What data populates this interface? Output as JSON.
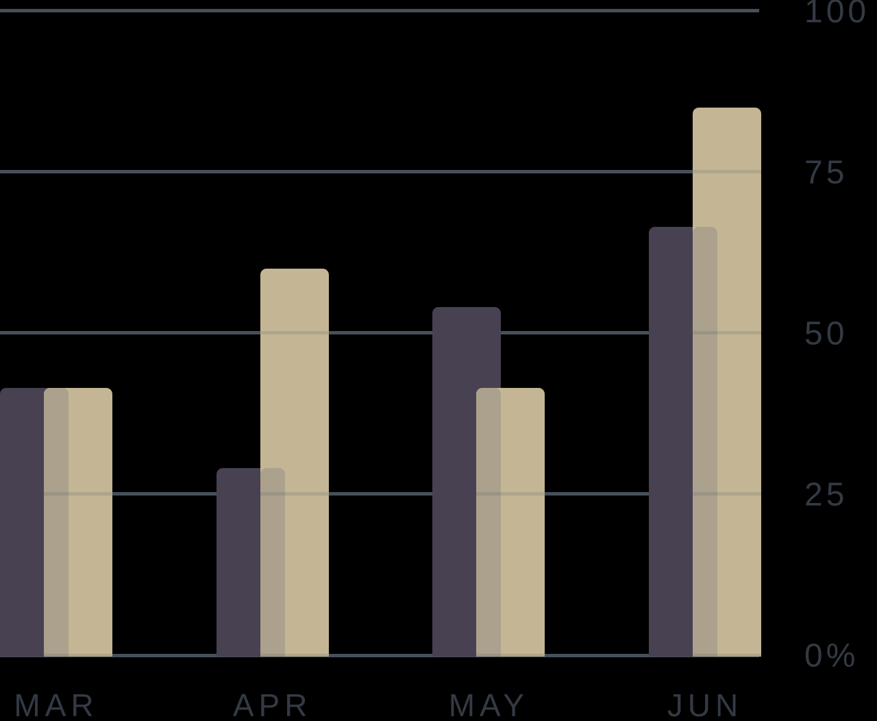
{
  "chart_data": {
    "type": "bar",
    "title": "",
    "categories": [
      "MAR",
      "APR",
      "MAY",
      "JUN"
    ],
    "series": [
      {
        "name": "dark-purple-series",
        "color": "#484152",
        "values": [
          41.5,
          29,
          54,
          66.5
        ]
      },
      {
        "name": "tan-series",
        "color": "#c4b694",
        "values": [
          41.5,
          60,
          41.5,
          85
        ]
      }
    ],
    "overlap_color": "#aba18d",
    "y_ticks": [
      {
        "label": "100",
        "value": 100
      },
      {
        "label": "75",
        "value": 75
      },
      {
        "label": "50",
        "value": 50
      },
      {
        "label": "25",
        "value": 25
      },
      {
        "label": "0%",
        "value": 0
      }
    ],
    "ylim": [
      0,
      100
    ],
    "grid": true,
    "legend": "none",
    "gridline_color": "#46505a",
    "axis_text_color": "#333a43",
    "background_color": "#000000"
  }
}
